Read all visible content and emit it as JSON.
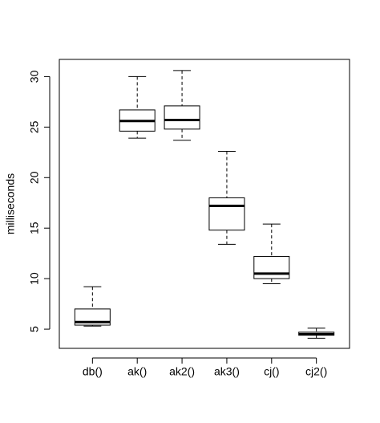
{
  "chart_data": {
    "type": "boxplot",
    "y_label": "milliseconds",
    "categories": [
      "db()",
      "ak()",
      "ak2()",
      "ak3()",
      "cj()",
      "cj2()"
    ],
    "min": [
      5.3,
      23.9,
      23.7,
      13.4,
      9.5,
      4.1
    ],
    "q1": [
      5.4,
      24.6,
      24.8,
      14.8,
      10.0,
      4.4
    ],
    "median": [
      5.7,
      25.6,
      25.7,
      17.2,
      10.5,
      4.5
    ],
    "q3": [
      7.0,
      26.7,
      27.1,
      18.0,
      12.2,
      4.7
    ],
    "max": [
      9.2,
      30.0,
      30.6,
      22.6,
      15.4,
      5.1
    ],
    "color": "#ffffff",
    "ylim": [
      3.1,
      31.7
    ],
    "yticks": [
      5,
      10,
      15,
      20,
      25,
      30
    ],
    "grid": false
  }
}
